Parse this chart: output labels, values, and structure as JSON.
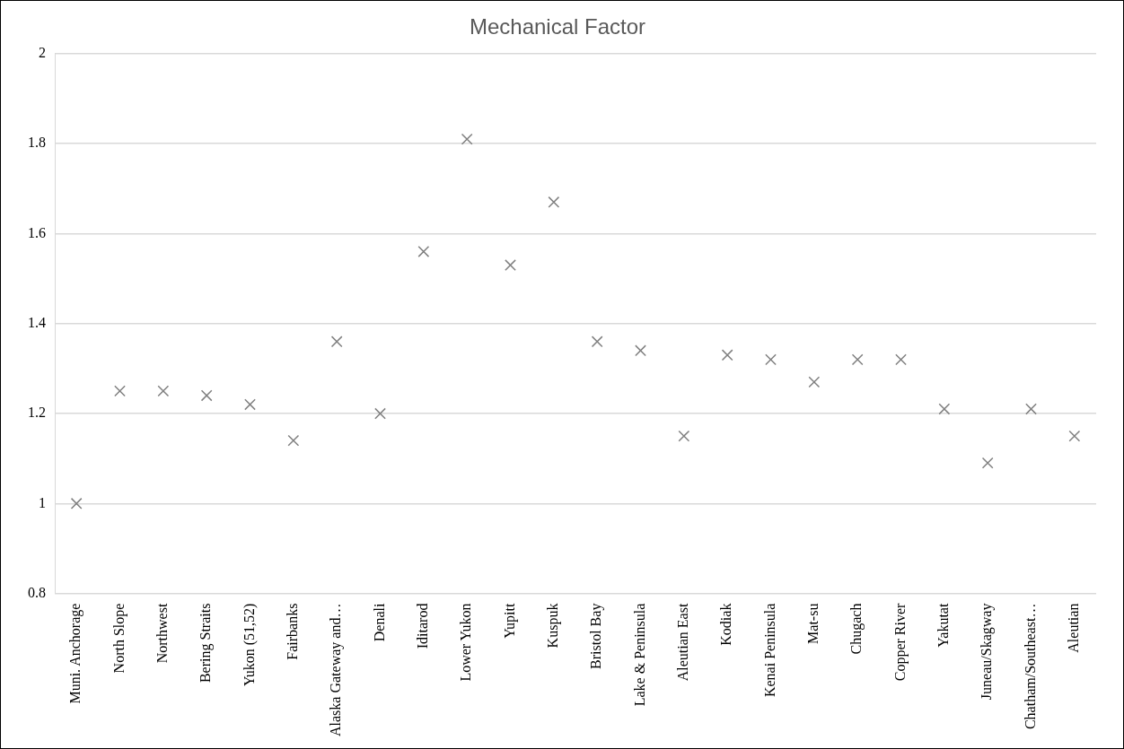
{
  "chart_data": {
    "type": "scatter",
    "title": "Mechanical Factor",
    "categories": [
      "Muni. Anchorage",
      "North Slope",
      "Northwest",
      "Bering Straits",
      "Yukon (51,52)",
      "Fairbanks",
      "Alaska Gateway and…",
      "Denali",
      "Iditarod",
      "Lower Yukon",
      "Yupitt",
      "Kuspuk",
      "Bristol Bay",
      "Lake & Peninsula",
      "Aleutian East",
      "Kodiak",
      "Kenai Peninsula",
      "Mat-su",
      "Chugach",
      "Copper River",
      "Yakutat",
      "Juneau/Skagway",
      "Chatham/Southeast…",
      "Aleutian"
    ],
    "values": [
      1.0,
      1.25,
      1.25,
      1.24,
      1.22,
      1.14,
      1.36,
      1.2,
      1.56,
      1.81,
      1.53,
      1.67,
      1.36,
      1.34,
      1.15,
      1.33,
      1.32,
      1.27,
      1.32,
      1.32,
      1.21,
      1.09,
      1.21,
      1.15
    ],
    "color": "#808080",
    "marker": "cross",
    "ylim": [
      0.8,
      2
    ],
    "yticks": [
      0.8,
      1,
      1.2,
      1.4,
      1.6,
      1.8,
      2
    ],
    "grid": "y",
    "legend": false
  }
}
